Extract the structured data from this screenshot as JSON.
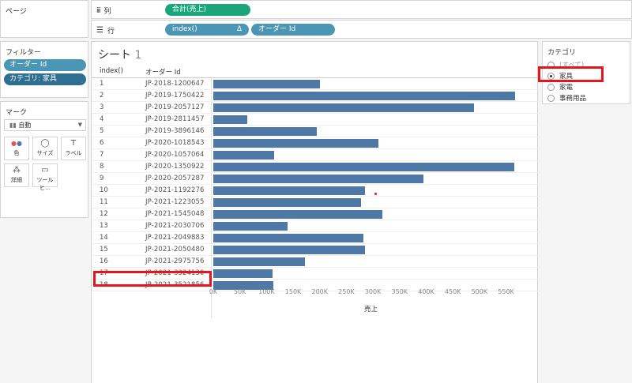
{
  "pages_label": "ページ",
  "columns_shelf": {
    "label": "列",
    "pill": "合計(売上)"
  },
  "rows_shelf": {
    "label": "行",
    "pills": [
      "index()",
      "オーダー Id"
    ],
    "delta": "Δ"
  },
  "filters": {
    "title": "フィルター",
    "items": [
      "オーダー Id",
      "カテゴリ: 家具"
    ]
  },
  "marks": {
    "title": "マーク",
    "type": "自動",
    "buttons": [
      {
        "label": "色",
        "icon": "●●"
      },
      {
        "label": "サイズ",
        "icon": "◯"
      },
      {
        "label": "ラベル",
        "icon": "T"
      },
      {
        "label": "詳細",
        "icon": "⁂"
      },
      {
        "label": "ツールヒ…",
        "icon": "▭"
      }
    ]
  },
  "sheet": {
    "title": "シート",
    "title_num": "1",
    "col_index": "index()",
    "col_order": "オーダー Id",
    "xlabel": "売上"
  },
  "chart_data": {
    "type": "bar",
    "orientation": "horizontal",
    "x": [
      1,
      2,
      3,
      4,
      5,
      6,
      7,
      8,
      9,
      10,
      11,
      12,
      13,
      14,
      15,
      16,
      17,
      18
    ],
    "categories": [
      "JP-2018-1200647",
      "JP-2019-1750422",
      "JP-2019-2057127",
      "JP-2019-2811457",
      "JP-2019-3896146",
      "JP-2020-1018543",
      "JP-2020-1057064",
      "JP-2020-1350922",
      "JP-2020-2057287",
      "JP-2021-1192276",
      "JP-2021-1223055",
      "JP-2021-1545048",
      "JP-2021-2030706",
      "JP-2021-2049883",
      "JP-2021-2050480",
      "JP-2021-2975756",
      "JP-2021-3324130",
      "JP-2021-3521856"
    ],
    "values": [
      200000,
      567000,
      490000,
      64000,
      195000,
      310000,
      115000,
      565000,
      395000,
      285000,
      278000,
      318000,
      140000,
      282000,
      285000,
      172000,
      112000,
      113000
    ],
    "xlabel": "売上",
    "xlim": [
      0,
      570000
    ],
    "ticks": [
      "0K",
      "50K",
      "100K",
      "150K",
      "200K",
      "250K",
      "300K",
      "350K",
      "400K",
      "450K",
      "500K",
      "550K"
    ],
    "tick_values": [
      0,
      50000,
      100000,
      150000,
      200000,
      250000,
      300000,
      350000,
      400000,
      450000,
      500000,
      550000
    ],
    "bar_color": "#4e79a7"
  },
  "category": {
    "title": "カテゴリ",
    "options": [
      "(すべて)",
      "家具",
      "家電",
      "事務用品"
    ],
    "selected": 1
  },
  "colors": {
    "highlight": "#e8141d",
    "pill_green": "#1aa67a",
    "pill_blue": "#4b96b4"
  }
}
